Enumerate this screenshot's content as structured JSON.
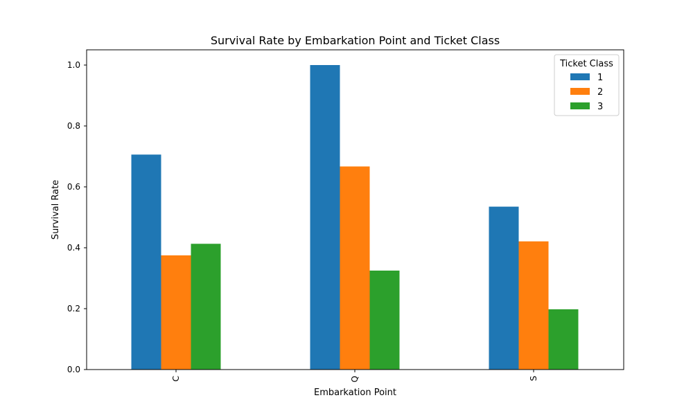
{
  "chart_data": {
    "type": "bar",
    "title": "Survival Rate by Embarkation Point and Ticket Class",
    "xlabel": "Embarkation Point",
    "ylabel": "Survival Rate",
    "categories": [
      "C",
      "Q",
      "S"
    ],
    "ylim": [
      0,
      1.05
    ],
    "yticks": [
      0.0,
      0.2,
      0.4,
      0.6,
      0.8,
      1.0
    ],
    "ytick_labels": [
      "0.0",
      "0.2",
      "0.4",
      "0.6",
      "0.8",
      "1.0"
    ],
    "grid": false,
    "legend": {
      "title": "Ticket Class",
      "placement": "top-right"
    },
    "series": [
      {
        "name": "1",
        "color": "#1f77b4",
        "values": [
          0.706,
          1.0,
          0.535
        ]
      },
      {
        "name": "2",
        "color": "#ff7f0e",
        "values": [
          0.375,
          0.667,
          0.421
        ]
      },
      {
        "name": "3",
        "color": "#2ca02c",
        "values": [
          0.413,
          0.325,
          0.198
        ]
      }
    ]
  }
}
